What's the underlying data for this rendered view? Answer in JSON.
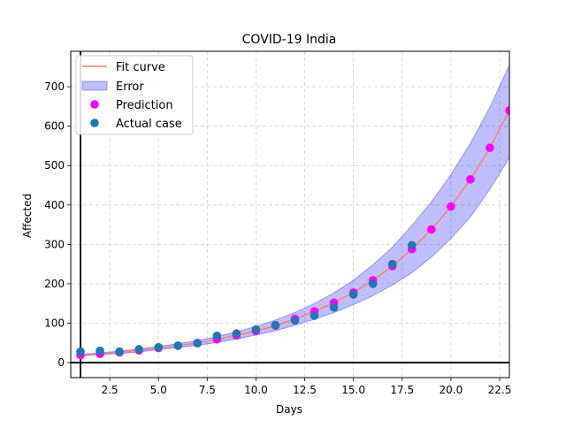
{
  "chart_data": {
    "type": "scatter",
    "title": "COVID-19 India",
    "xlabel": "Days",
    "ylabel": "Affected",
    "xlim": [
      0.5,
      23
    ],
    "ylim": [
      -38,
      790
    ],
    "xticks": [
      2.5,
      5.0,
      7.5,
      10.0,
      12.5,
      15.0,
      17.5,
      20.0,
      22.5
    ],
    "xtick_labels": [
      "2.5",
      "5.0",
      "7.5",
      "10.0",
      "12.5",
      "15.0",
      "17.5",
      "20.0",
      "22.5"
    ],
    "yticks": [
      0,
      100,
      200,
      300,
      400,
      500,
      600,
      700
    ],
    "ytick_labels": [
      "0",
      "100",
      "200",
      "300",
      "400",
      "500",
      "600",
      "700"
    ],
    "grid": true,
    "legend_position": "top-left",
    "reference_lines": {
      "vertical_x": 1,
      "horizontal_y": 0
    },
    "series": [
      {
        "name": "Fit curve",
        "kind": "line",
        "color": "#fa8072",
        "x": [
          1,
          2,
          3,
          4,
          5,
          6,
          7,
          8,
          9,
          10,
          11,
          12,
          13,
          14,
          15,
          16,
          17,
          18,
          19,
          20,
          21,
          22,
          23
        ],
        "y": [
          19,
          22,
          26,
          31,
          37,
          43,
          50,
          59,
          69,
          80,
          94,
          111,
          130,
          152,
          178,
          209,
          245,
          288,
          338,
          396,
          465,
          545,
          640
        ]
      },
      {
        "name": "Error",
        "kind": "band",
        "color": "#0000ff",
        "x": [
          1,
          2,
          3,
          4,
          5,
          6,
          7,
          8,
          9,
          10,
          11,
          12,
          13,
          14,
          15,
          16,
          17,
          18,
          19,
          20,
          21,
          22,
          23
        ],
        "lower": [
          17,
          20,
          23,
          27,
          33,
          38,
          44,
          51,
          60,
          70,
          81,
          95,
          110,
          127,
          147,
          170,
          197,
          228,
          268,
          315,
          370,
          440,
          520
        ],
        "upper": [
          21,
          25,
          29,
          35,
          41,
          48,
          56,
          66,
          78,
          92,
          108,
          127,
          150,
          177,
          209,
          248,
          293,
          348,
          408,
          477,
          556,
          648,
          755
        ]
      },
      {
        "name": "Prediction",
        "kind": "scatter",
        "color": "#ff00ff",
        "x": [
          1,
          2,
          3,
          4,
          5,
          6,
          7,
          8,
          9,
          10,
          11,
          12,
          13,
          14,
          15,
          16,
          17,
          18,
          19,
          20,
          21,
          22,
          23
        ],
        "y": [
          19,
          22,
          26,
          31,
          37,
          43,
          50,
          59,
          69,
          80,
          94,
          111,
          130,
          152,
          178,
          209,
          245,
          288,
          338,
          396,
          465,
          545,
          640
        ]
      },
      {
        "name": "Actual case",
        "kind": "scatter",
        "color": "#1f77b4",
        "x": [
          1,
          2,
          3,
          4,
          5,
          6,
          7,
          8,
          9,
          10,
          11,
          12,
          13,
          14,
          15,
          16,
          17,
          18
        ],
        "y": [
          28,
          30,
          28,
          34,
          39,
          43,
          49,
          68,
          74,
          84,
          95,
          107,
          119,
          140,
          173,
          200,
          250,
          298
        ]
      }
    ]
  }
}
